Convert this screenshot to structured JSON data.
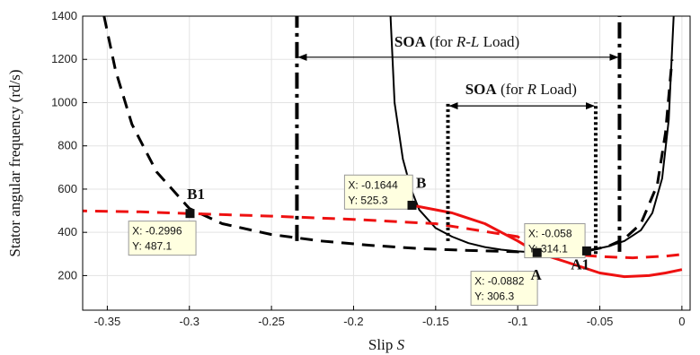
{
  "chart_data": {
    "type": "line",
    "title": "",
    "xlabel_main": "Slip ",
    "xlabel_var": "S",
    "ylabel": "Stator angular frequency (rd/s)",
    "xlim": [
      -0.365,
      0.005
    ],
    "ylim": [
      40,
      1400
    ],
    "xticks": [
      -0.35,
      -0.3,
      -0.25,
      -0.2,
      -0.15,
      -0.1,
      -0.05,
      0
    ],
    "xtick_labels": [
      "-0.35",
      "-0.3",
      "-0.25",
      "-0.2",
      "-0.15",
      "-0.1",
      "-0.05",
      "0"
    ],
    "yticks": [
      200,
      400,
      600,
      800,
      1000,
      1200,
      1400
    ],
    "ytick_labels": [
      "200",
      "400",
      "600",
      "800",
      "1000",
      "1200",
      "1400"
    ],
    "grid": true,
    "colors": {
      "black": "#000000",
      "red": "#ee1111",
      "tooltip_bg": "#ffffe0",
      "tooltip_border": "#999999",
      "grid": "#e3e3e3"
    },
    "series": [
      {
        "style": "black-dashed",
        "x": [
          -0.352,
          -0.345,
          -0.335,
          -0.32,
          -0.3,
          -0.28,
          -0.25,
          -0.22,
          -0.19,
          -0.16,
          -0.13,
          -0.1,
          -0.0882,
          -0.075,
          -0.058,
          -0.045,
          -0.035,
          -0.025,
          -0.015,
          -0.01,
          -0.006
        ],
        "y": [
          1400,
          1150,
          900,
          680,
          510,
          440,
          390,
          360,
          340,
          325,
          316,
          310,
          306.3,
          308,
          314.1,
          335,
          370,
          440,
          620,
          860,
          1200
        ]
      },
      {
        "style": "black-solid",
        "x": [
          -0.1775,
          -0.175,
          -0.17,
          -0.165,
          -0.16,
          -0.15,
          -0.14,
          -0.13,
          -0.12,
          -0.11,
          -0.1,
          -0.0882,
          -0.075,
          -0.058,
          -0.045,
          -0.035,
          -0.025,
          -0.018,
          -0.012,
          -0.008,
          -0.005
        ],
        "y": [
          1400,
          1000,
          740,
          600,
          505,
          420,
          380,
          350,
          332,
          320,
          312,
          306.3,
          307,
          314.1,
          335,
          360,
          410,
          490,
          650,
          920,
          1400
        ]
      },
      {
        "style": "red-dashed",
        "x": [
          -0.37,
          -0.33,
          -0.3,
          -0.25,
          -0.2,
          -0.15,
          -0.1,
          -0.0882,
          -0.07,
          -0.05,
          -0.03,
          -0.01,
          0
        ],
        "y": [
          500,
          495,
          487.1,
          475,
          460,
          440,
          380,
          306.3,
          300,
          288,
          282,
          290,
          298
        ]
      },
      {
        "style": "red-solid",
        "x": [
          -0.1644,
          -0.14,
          -0.12,
          -0.1,
          -0.0882,
          -0.07,
          -0.05,
          -0.035,
          -0.02,
          -0.01,
          0
        ],
        "y": [
          525.3,
          490,
          440,
          360,
          306.3,
          262,
          212,
          195,
          200,
          212,
          228
        ]
      }
    ],
    "vertical_lines": [
      {
        "style": "dashdot",
        "x": -0.2345,
        "y0": 360,
        "y1": 1400
      },
      {
        "style": "dashdot",
        "x": -0.038,
        "y0": 310,
        "y1": 1400
      },
      {
        "style": "dotted",
        "x": -0.1425,
        "y0": 360,
        "y1": 1000
      },
      {
        "style": "dotted",
        "x": -0.0525,
        "y0": 300,
        "y1": 1000
      }
    ],
    "arrows": [
      {
        "from": -0.2345,
        "to": -0.038,
        "y": 1210,
        "label_bold": "SOA",
        "label_pre": " (for ",
        "label_it": "R-L",
        "label_post": " Load)",
        "label_x": -0.137,
        "label_y": 1260
      },
      {
        "from": -0.1425,
        "to": -0.0525,
        "y": 985,
        "label_bold": "SOA",
        "label_pre": " (for ",
        "label_it": "R",
        "label_post": " Load)",
        "label_x": -0.098,
        "label_y": 1040
      }
    ],
    "points": [
      {
        "name": "B1",
        "x": -0.2996,
        "y": 487.1,
        "label": "B1",
        "label_x": -0.296,
        "label_y": 555,
        "tip_x_text": "X: -0.2996",
        "tip_y_text": "Y: 487.1",
        "tip_at": [
          -0.337,
          452
        ],
        "tip_w": 0.041,
        "tip_h": 145
      },
      {
        "name": "B",
        "x": -0.1644,
        "y": 525.3,
        "label": "B",
        "label_x": -0.1588,
        "label_y": 605,
        "tip_x_text": "X: -0.1644",
        "tip_y_text": "Y: 525.3",
        "tip_at": [
          -0.2055,
          665
        ],
        "tip_w": 0.0415,
        "tip_h": 145
      },
      {
        "name": "A1",
        "x": -0.058,
        "y": 314.1,
        "label": "A1",
        "label_x": -0.062,
        "label_y": 228,
        "tip_x_text": "X: -0.058",
        "tip_y_text": "Y: 314.1",
        "tip_at": [
          -0.0958,
          440
        ],
        "tip_w": 0.0368,
        "tip_h": 145
      },
      {
        "name": "A",
        "x": -0.0882,
        "y": 306.3,
        "label": "A",
        "label_x": -0.0888,
        "label_y": 180,
        "tip_x_text": "X: -0.0882",
        "tip_y_text": "Y: 306.3",
        "tip_at": [
          -0.1285,
          220
        ],
        "tip_w": 0.0405,
        "tip_h": 145
      }
    ]
  }
}
